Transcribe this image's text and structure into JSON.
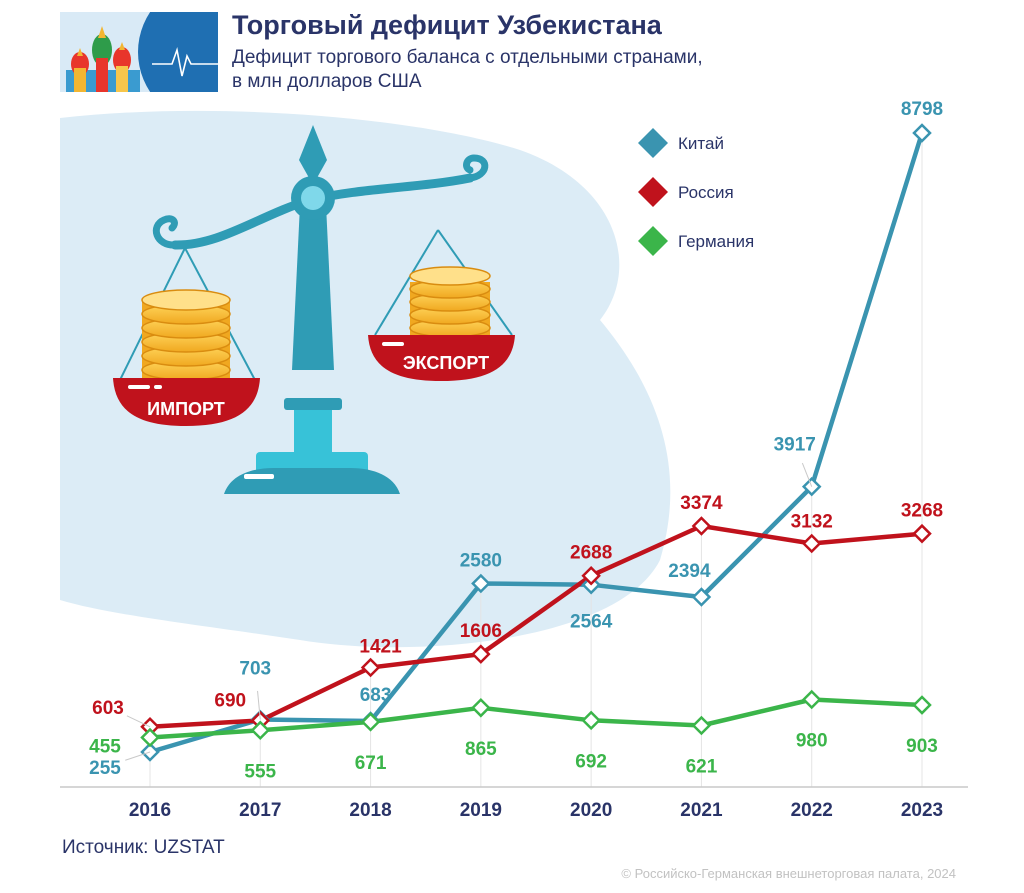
{
  "header": {
    "title": "Торговый дефицит Узбекистана",
    "subtitle": "Дефицит торгового баланса с отдельными странами,\nв млн долларов США"
  },
  "illustration": {
    "import_label": "ИМПОРТ",
    "export_label": "ЭКСПОРТ"
  },
  "chart_data": {
    "type": "line",
    "title": "Торговый дефицит Узбекистана",
    "subtitle": "Дефицит торгового баланса с отдельными странами, в млн долларов США",
    "xlabel": "",
    "ylabel": "",
    "x": [
      "2016",
      "2017",
      "2018",
      "2019",
      "2020",
      "2021",
      "2022",
      "2023"
    ],
    "series": [
      {
        "name": "Китай",
        "color": "#3a94b0",
        "values": [
          255,
          703,
          683,
          2580,
          2564,
          2394,
          3917,
          8798
        ]
      },
      {
        "name": "Россия",
        "color": "#c0121c",
        "values": [
          603,
          690,
          1421,
          1606,
          2688,
          3374,
          3132,
          3268
        ]
      },
      {
        "name": "Германия",
        "color": "#3bb54a",
        "values": [
          455,
          555,
          671,
          865,
          692,
          621,
          980,
          903
        ]
      }
    ],
    "ylim": [
      0,
      9500
    ],
    "grid": false,
    "legend": "top-right"
  },
  "footer": {
    "source": "Источник: UZSTAT",
    "copyright": "© Российско-Германская внешнеторговая палата, 2024"
  }
}
